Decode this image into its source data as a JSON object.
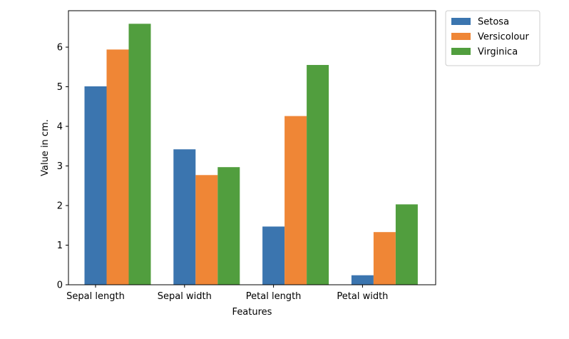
{
  "chart_data": {
    "type": "bar",
    "categories": [
      "Sepal length",
      "Sepal width",
      "Petal length",
      "Petal width"
    ],
    "series": [
      {
        "name": "Setosa",
        "color": "#3b75af",
        "values": [
          5.01,
          3.42,
          1.47,
          0.24
        ]
      },
      {
        "name": "Versicolour",
        "color": "#ef8636",
        "values": [
          5.94,
          2.77,
          4.26,
          1.33
        ]
      },
      {
        "name": "Virginica",
        "color": "#519e3e",
        "values": [
          6.59,
          2.97,
          5.55,
          2.03
        ]
      }
    ],
    "title": "",
    "xlabel": "Features",
    "ylabel": "Value in cm.",
    "ylim": [
      0,
      6.92
    ],
    "yticks": [
      0,
      1,
      2,
      3,
      4,
      5,
      6
    ],
    "grid": false,
    "legend_position": "outside-top-right"
  }
}
